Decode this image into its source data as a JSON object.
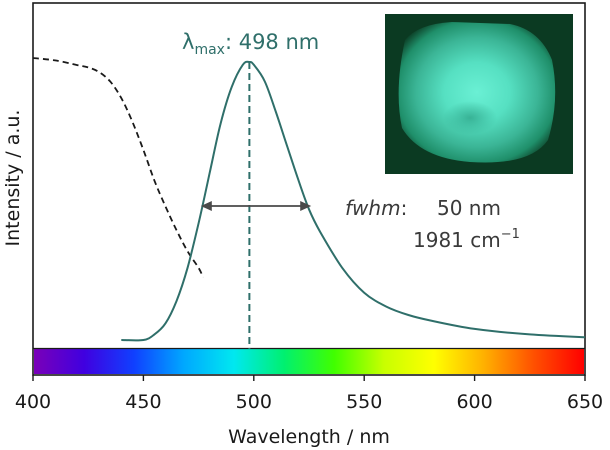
{
  "chart_data": {
    "type": "line",
    "xlabel": "Wavelength / nm",
    "ylabel": "Intensity / a.u.",
    "xlim": [
      400,
      650
    ],
    "x_ticks": [
      400,
      450,
      500,
      550,
      600,
      650
    ],
    "x_tick_labels": [
      "400",
      "450",
      "500",
      "550",
      "600",
      "650"
    ],
    "grid": false,
    "legend": "none",
    "series": [
      {
        "style": "dashed",
        "color": "#1a1a1a",
        "x": [
          400,
          410,
          420,
          425,
          430,
          435,
          440,
          445,
          450,
          455,
          460,
          465,
          470,
          475,
          477
        ],
        "y": [
          0.95,
          0.94,
          0.92,
          0.91,
          0.89,
          0.85,
          0.78,
          0.68,
          0.56,
          0.43,
          0.32,
          0.22,
          0.13,
          0.06,
          0.02
        ]
      },
      {
        "style": "solid",
        "color": "#2f6f6a",
        "x": [
          440,
          450,
          455,
          460,
          465,
          470,
          475,
          480,
          485,
          490,
          495,
          498,
          500,
          505,
          510,
          515,
          520,
          525,
          530,
          540,
          550,
          560,
          570,
          580,
          600,
          625,
          650
        ],
        "y": [
          0.0,
          0.0,
          0.02,
          0.06,
          0.14,
          0.26,
          0.42,
          0.6,
          0.78,
          0.91,
          0.99,
          1.0,
          0.99,
          0.93,
          0.82,
          0.7,
          0.58,
          0.47,
          0.39,
          0.26,
          0.17,
          0.12,
          0.09,
          0.07,
          0.04,
          0.02,
          0.01
        ]
      }
    ],
    "annotations": {
      "lambda_symbol": "λ",
      "lambda_sub": "max",
      "lambda_value": ": 498 nm",
      "lambda_x": 498,
      "fwhm_label": "fwhm",
      "fwhm_colon": ":",
      "fwhm_nm": "50 nm",
      "fwhm_wavenumber": "1981 cm",
      "fwhm_wavenumber_exp": "−1",
      "fwhm_x_start": 476,
      "fwhm_x_end": 526
    },
    "color_bar": {
      "stops": [
        "#7a00b8",
        "#4000e0",
        "#1040ff",
        "#00a8ff",
        "#00e8f0",
        "#00f070",
        "#40ff00",
        "#c8ff00",
        "#ffff00",
        "#ffb000",
        "#ff5000",
        "#ff0000"
      ]
    },
    "inset": {
      "description_colors": [
        "#0b3a22",
        "#1f8f6a",
        "#56e0c2",
        "#6af0d4",
        "#3bb596"
      ]
    }
  }
}
